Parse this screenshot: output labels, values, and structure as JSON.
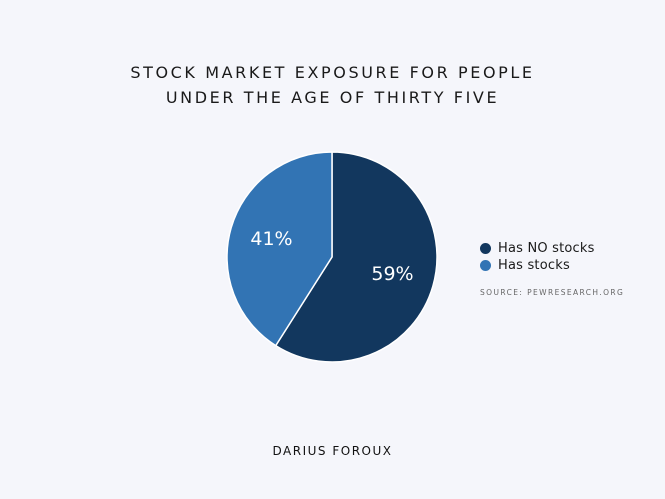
{
  "chart_data": {
    "type": "pie",
    "title_lines": [
      "STOCK MARKET EXPOSURE FOR PEOPLE",
      "UNDER THE AGE OF THIRTY FIVE"
    ],
    "slices": [
      {
        "label": "Has NO stocks",
        "value": 59,
        "display": "59%",
        "color": "#12375e"
      },
      {
        "label": "Has stocks",
        "value": 41,
        "display": "41%",
        "color": "#3274b4"
      }
    ],
    "legend_position": "right",
    "source": "SOURCE: PEWRESEARCH.ORG"
  },
  "footer": {
    "author": "DARIUS FOROUX"
  },
  "colors": {
    "background": "#f5f6fb",
    "slice_border": "#ffffff"
  }
}
